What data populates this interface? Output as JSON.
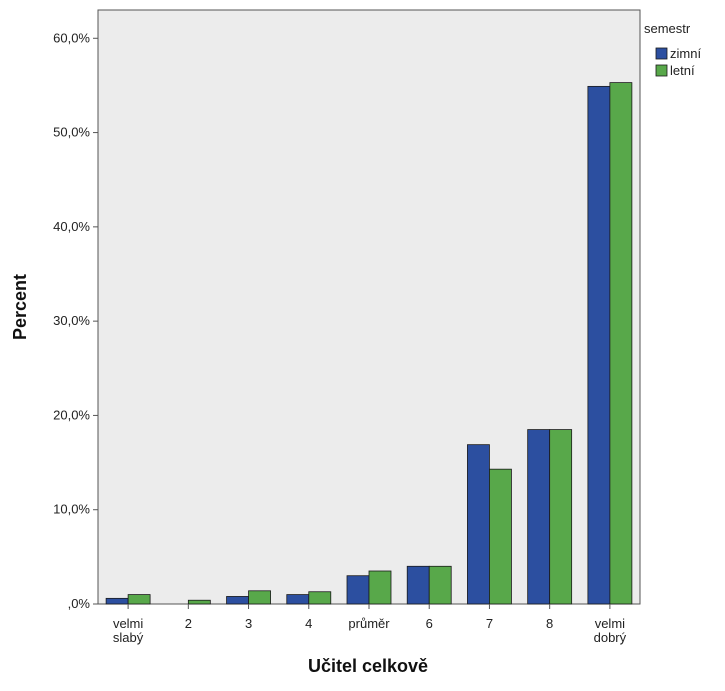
{
  "chart_data": {
    "type": "bar",
    "xlabel": "Učitel celkově",
    "ylabel": "Percent",
    "ylim": [
      0,
      63
    ],
    "yticks": [
      0,
      10,
      20,
      30,
      40,
      50,
      60
    ],
    "ytick_labels": [
      ",0%",
      "10,0%",
      "20,0%",
      "30,0%",
      "40,0%",
      "50,0%",
      "60,0%"
    ],
    "categories": [
      [
        "velmi",
        "slabý"
      ],
      [
        "2"
      ],
      [
        "3"
      ],
      [
        "4"
      ],
      [
        "průměr"
      ],
      [
        "6"
      ],
      [
        "7"
      ],
      [
        "8"
      ],
      [
        "velmi",
        "dobrý"
      ]
    ],
    "series": [
      {
        "name": "zimní",
        "color": "#2c4fa0",
        "values": [
          0.6,
          0.0,
          0.8,
          1.0,
          3.0,
          4.0,
          16.9,
          18.5,
          54.9
        ]
      },
      {
        "name": "letní",
        "color": "#58a84a",
        "values": [
          1.0,
          0.4,
          1.4,
          1.3,
          3.5,
          4.0,
          14.3,
          18.5,
          55.3
        ]
      }
    ],
    "legend": {
      "title": "semestr",
      "position": "top-right"
    },
    "plot_background": "#ececec",
    "grid": false
  }
}
